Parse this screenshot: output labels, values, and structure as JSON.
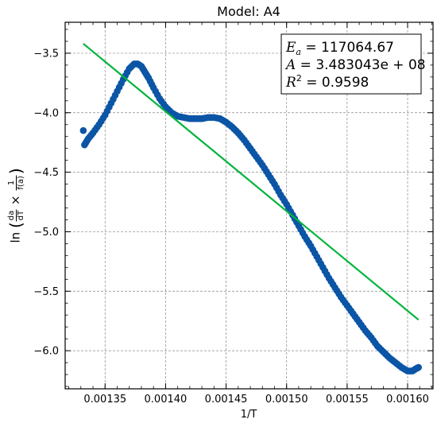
{
  "chart_data": {
    "type": "scatter",
    "title": "Model: A4",
    "xlabel": "1/T",
    "ylabel": {
      "prefix": "ln",
      "frac1_num": "da",
      "frac1_den": "dT",
      "times": "×",
      "frac2_num": "1",
      "frac2_den": "f(a)"
    },
    "xlim": [
      0.001317,
      0.001621
    ],
    "ylim": [
      -6.32,
      -3.24
    ],
    "xticks": [
      0.00135,
      0.0014,
      0.00145,
      0.0015,
      0.00155,
      0.0016
    ],
    "xtick_labels": [
      "0.00135",
      "0.00140",
      "0.00145",
      "0.00150",
      "0.00155",
      "0.00160"
    ],
    "yticks": [
      -6.0,
      -5.5,
      -5.0,
      -4.5,
      -4.0,
      -3.5
    ],
    "ytick_labels": [
      "−6.0",
      "−5.5",
      "−5.0",
      "−4.5",
      "−4.0",
      "−3.5"
    ],
    "grid": true,
    "annotation": {
      "ea_label": "E",
      "ea_sub": "a",
      "ea_value": " = 117064.67",
      "a_label": "A",
      "a_value": " = 3.483043e + 08",
      "r2_label": "R",
      "r2_sup": "2",
      "r2_value": " = 0.9598",
      "placement": "top-right"
    },
    "series": [
      {
        "kind": "scatter",
        "color": "#0b55a6",
        "x": [
          0.001333,
          0.001336,
          0.00134,
          0.001345,
          0.00135,
          0.001355,
          0.00136,
          0.001365,
          0.00137,
          0.001374,
          0.001377,
          0.00138,
          0.001383,
          0.001386,
          0.00139,
          0.001395,
          0.0014,
          0.001405,
          0.00141,
          0.001415,
          0.00142,
          0.001425,
          0.00143,
          0.001435,
          0.00144,
          0.001445,
          0.00145,
          0.001455,
          0.00146,
          0.001465,
          0.00147,
          0.001475,
          0.00148,
          0.001485,
          0.00149,
          0.001495,
          0.0015,
          0.001505,
          0.00151,
          0.001515,
          0.00152,
          0.001525,
          0.00153,
          0.001535,
          0.00154,
          0.001545,
          0.00155,
          0.001555,
          0.00156,
          0.001565,
          0.00157,
          0.001575,
          0.00158,
          0.001585,
          0.00159,
          0.001595,
          0.0016,
          0.001604,
          0.001607,
          0.001609
        ],
        "y": [
          -4.27,
          -4.22,
          -4.17,
          -4.1,
          -4.02,
          -3.92,
          -3.82,
          -3.72,
          -3.63,
          -3.59,
          -3.59,
          -3.61,
          -3.66,
          -3.71,
          -3.79,
          -3.88,
          -3.95,
          -4.0,
          -4.03,
          -4.04,
          -4.05,
          -4.05,
          -4.05,
          -4.04,
          -4.04,
          -4.05,
          -4.08,
          -4.12,
          -4.17,
          -4.23,
          -4.3,
          -4.37,
          -4.44,
          -4.52,
          -4.6,
          -4.69,
          -4.77,
          -4.86,
          -4.95,
          -5.04,
          -5.12,
          -5.21,
          -5.3,
          -5.39,
          -5.47,
          -5.55,
          -5.62,
          -5.69,
          -5.76,
          -5.83,
          -5.89,
          -5.96,
          -6.01,
          -6.06,
          -6.1,
          -6.14,
          -6.17,
          -6.17,
          -6.15,
          -6.14
        ]
      },
      {
        "kind": "scatter",
        "color": "#0b55a6",
        "x": [
          0.001332
        ],
        "y": [
          -4.15
        ]
      },
      {
        "kind": "line",
        "color": "#00b43c",
        "x": [
          0.001332,
          0.001609
        ],
        "y": [
          -3.42,
          -5.74
        ]
      }
    ]
  }
}
